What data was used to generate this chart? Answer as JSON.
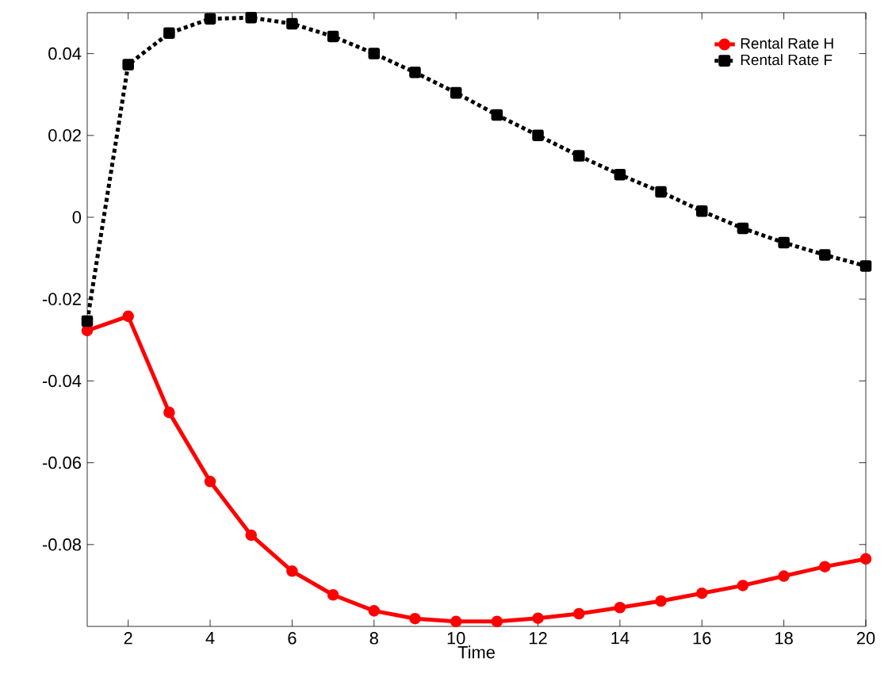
{
  "chart_data": {
    "type": "line",
    "xlabel": "Time",
    "x": [
      1,
      2,
      3,
      4,
      5,
      6,
      7,
      8,
      9,
      10,
      11,
      12,
      13,
      14,
      15,
      16,
      17,
      18,
      19,
      20
    ],
    "series": [
      {
        "name": "Rental Rate H",
        "color": "#ff0000",
        "marker": "circle",
        "line_style": "solid",
        "values": [
          -0.0277,
          -0.0242,
          -0.0477,
          -0.0646,
          -0.0777,
          -0.0865,
          -0.0923,
          -0.0962,
          -0.0981,
          -0.0988,
          -0.0988,
          -0.098,
          -0.0969,
          -0.0954,
          -0.0938,
          -0.0919,
          -0.09,
          -0.0877,
          -0.0854,
          -0.0835
        ]
      },
      {
        "name": "Rental Rate F",
        "color": "#000000",
        "marker": "square",
        "line_style": "dotted",
        "values": [
          -0.0254,
          0.0373,
          0.045,
          0.0485,
          0.0488,
          0.0473,
          0.0442,
          0.04,
          0.0354,
          0.0304,
          0.025,
          0.02,
          0.015,
          0.0104,
          0.0062,
          0.0015,
          -0.0027,
          -0.0062,
          -0.0092,
          -0.0119
        ]
      }
    ],
    "xlim": [
      1,
      20
    ],
    "ylim": [
      -0.1,
      0.05
    ],
    "xticks": [
      2,
      4,
      6,
      8,
      10,
      12,
      14,
      16,
      18,
      20
    ],
    "yticks": [
      -0.08,
      -0.06,
      -0.04,
      -0.02,
      0,
      0.02,
      0.04
    ],
    "grid": false,
    "legend": "top right"
  }
}
